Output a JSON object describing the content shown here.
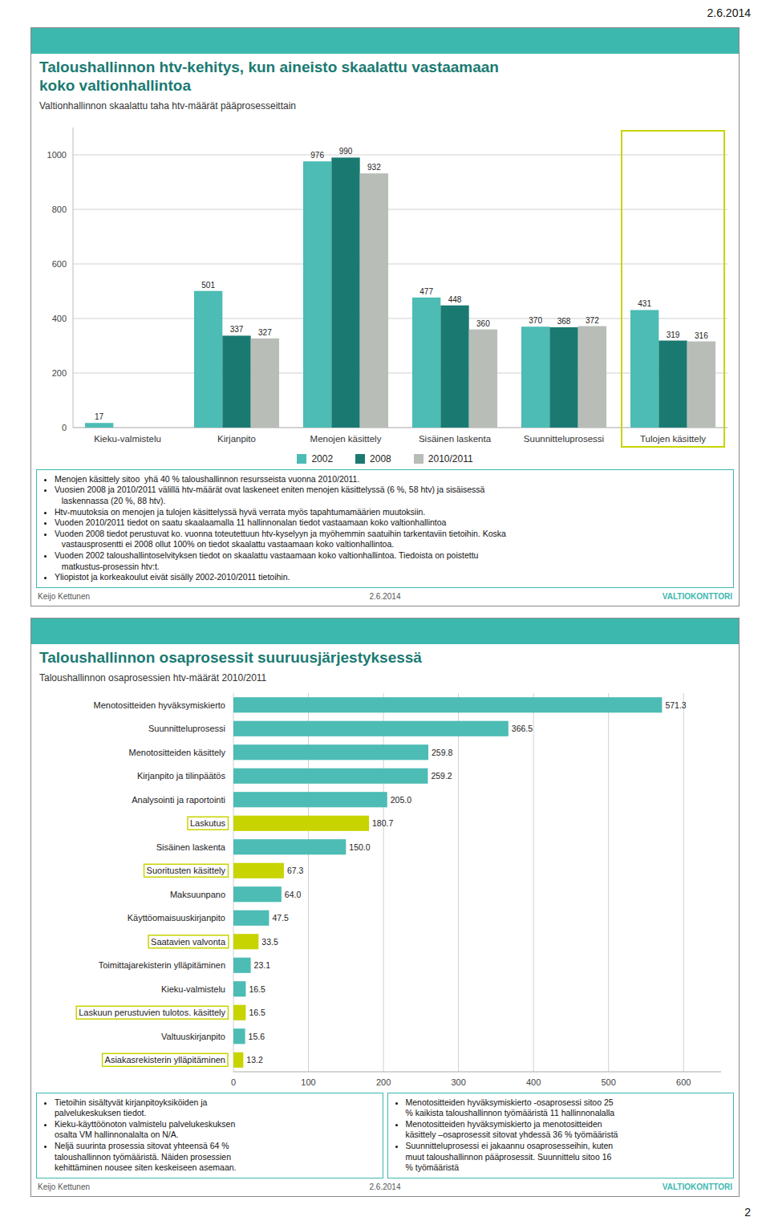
{
  "page_title": "2.6.2014",
  "page_number": "2",
  "chart_data": [
    {
      "type": "bar",
      "title": "Taloushallinnon htv-kehitys, kun aineisto skaalattu vastaamaan\nkoko valtionhallintoa",
      "subtitle": "Valtionhallinnon skaalattu taha htv-määrät pääprosesseittain",
      "categories": [
        "Kieku-valmistelu",
        "Kirjanpito",
        "Menojen käsittely",
        "Sisäinen laskenta",
        "Suunnitteluprosessi",
        "Tulojen käsittely"
      ],
      "series": [
        {
          "name": "2002",
          "color": "#4cbcb4",
          "values": [
            17,
            501,
            976,
            477,
            370,
            431
          ]
        },
        {
          "name": "2008",
          "color": "#1a7a72",
          "values": [
            null,
            337,
            990,
            448,
            368,
            319
          ]
        },
        {
          "name": "2010/2011",
          "color": "#b8bdb8",
          "values": [
            null,
            327,
            932,
            360,
            372,
            316
          ]
        }
      ],
      "ylim": [
        0,
        1100
      ],
      "yticks": [
        0,
        200,
        400,
        600,
        800,
        1000
      ],
      "grid": true,
      "data_labels": true,
      "legend": "bottom",
      "highlight_categories": [
        "Tulojen käsittely"
      ],
      "highlight_color": "#c8d400",
      "bullet_points": [
        "Menojen käsittely sitoo  yhä 40 % taloushallinnon resursseista vuonna 2010/2011.",
        "Vuosien 2008 ja 2010/2011 välillä htv-määrät ovat laskeneet eniten menojen käsittelyssä (6 %, 58 htv) ja sisäisessä\n   laskennassa (20 %, 88 htv).",
        "Htv-muutoksia on menojen ja tulojen käsittelyssä hyvä verrata myös tapahtumamäärien muutoksiin.",
        "Vuoden 2010/2011 tiedot on saatu skaalaamalla 11 hallinnonalan tiedot vastaamaan koko valtionhallintoa",
        "Vuoden 2008 tiedot perustuvat ko. vuonna toteutettuun htv-kyselyyn ja myöhemmin saatuihin tarkentaviin tietoihin. Koska\n   vastausprosentti ei 2008 ollut 100% on tiedot skaalattu vastaamaan koko valtionhallintoa.",
        "Vuoden 2002 taloushallintoselvityksen tiedot on skaalattu vastaamaan koko valtionhallintoa. Tiedoista on poistettu\n   matkustus-prosessin htv:t.",
        "Yliopistot ja korkeakoulut eivät sisälly 2002-2010/2011 tietoihin."
      ],
      "footer_left": "Keijo Kettunen",
      "footer_center": "2.6.2014",
      "footer_right": "VALTIOKONTTORI"
    },
    {
      "type": "bar",
      "orientation": "horizontal",
      "title": "Taloushallinnon osaprosessit suuruusjärjestyksessä",
      "subtitle": "Taloushallinnon osaprosessien htv-määrät 2010/2011",
      "categories": [
        "Menotositteiden hyväksymiskierto",
        "Suunnitteluprosessi",
        "Menotositteiden käsittely",
        "Kirjanpito ja tilinpäätös",
        "Analysointi ja raportointi",
        "Laskutus",
        "Sisäinen laskenta",
        "Suoritusten käsittely",
        "Maksuunpano",
        "Käyttöomaisuuskirjanpito",
        "Saatavien valvonta",
        "Toimittajarekisterin ylläpitäminen",
        "Kieku-valmistelu",
        "Laskuun perustuvien tulotos. käsittely",
        "Valtuuskirjanpito",
        "Asiakasrekisterin ylläpitäminen"
      ],
      "values": [
        571.3,
        366.5,
        259.8,
        259.2,
        205.0,
        180.7,
        150.0,
        67.3,
        64.0,
        47.5,
        33.5,
        23.1,
        16.5,
        16.5,
        15.6,
        13.2
      ],
      "value_labels": [
        "571.3",
        "366.5",
        "259.8",
        "259.2",
        "205.0",
        "180.7",
        "150.0",
        "67.3",
        "64.0",
        "47.5",
        "33.5",
        "23.1",
        "16.5",
        "16.5",
        "15.6",
        "13.2"
      ],
      "colors": [
        "#4cbcb4",
        "#4cbcb4",
        "#4cbcb4",
        "#4cbcb4",
        "#4cbcb4",
        "#c8d400",
        "#4cbcb4",
        "#c8d400",
        "#4cbcb4",
        "#4cbcb4",
        "#c8d400",
        "#4cbcb4",
        "#4cbcb4",
        "#c8d400",
        "#4cbcb4",
        "#c8d400"
      ],
      "highlight_labels": [
        "Laskutus",
        "Suoritusten käsittely",
        "Saatavien valvonta",
        "Laskuun perustuvien tulotos. käsittely",
        "Asiakasrekisterin ylläpitäminen"
      ],
      "highlight_color": "#c8d400",
      "xlim": [
        0,
        650
      ],
      "xticks": [
        0,
        100,
        200,
        300,
        400,
        500,
        600
      ],
      "grid": true,
      "data_labels": true,
      "bullet_left": [
        "Tietoihin sisältyvät kirjanpitoyksiköiden ja\npalvelukeskuksen tiedot.",
        "Kieku-käyttöönoton valmistelu palvelukeskuksen\nosalta VM hallinnonalalta on N/A.",
        "Neljä suurinta prosessia sitovat yhteensä 64 %\ntaloushallinnon työmääristä. Näiden prosessien\nkehittäminen nousee siten keskeiseen asemaan."
      ],
      "bullet_right": [
        "Menotositteiden hyväksymiskierto -osaprosessi sitoo 25\n% kaikista taloushallinnon työmääristä 11 hallinnonalalla",
        "Menotositteiden hyväksymiskierto ja menotositteiden\nkäsittely –osaprosessit sitovat yhdessä 36 % työmääristä",
        "Suunnitteluprosessi ei jakaannu osaprosesseihin, kuten\nmuut taloushallinnon pääprosessit. Suunnittelu sitoo 16\n% työmääristä"
      ],
      "footer_left": "Keijo Kettunen",
      "footer_center": "2.6.2014",
      "footer_right": "VALTIOKONTTORI"
    }
  ]
}
